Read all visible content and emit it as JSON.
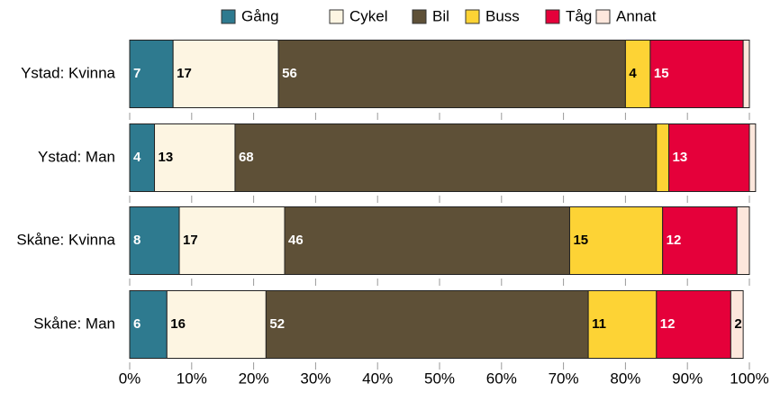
{
  "chart_data": {
    "type": "stacked_bar_horizontal",
    "categories": [
      "Ystad: Kvinna",
      "Ystad: Man",
      "Skåne: Kvinna",
      "Skåne: Man"
    ],
    "series": [
      {
        "name": "Gång",
        "color": "#2e7a8f",
        "label_color": "#ffffff",
        "values": [
          7,
          4,
          8,
          6
        ],
        "value_labels": [
          "7",
          "4",
          "8",
          "6"
        ]
      },
      {
        "name": "Cykel",
        "color": "#fdf5e2",
        "label_color": "#000000",
        "values": [
          17,
          13,
          17,
          16
        ],
        "value_labels": [
          "17",
          "13",
          "17",
          "16"
        ]
      },
      {
        "name": "Bil",
        "color": "#5e5037",
        "label_color": "#ffffff",
        "values": [
          56,
          68,
          46,
          52
        ],
        "value_labels": [
          "56",
          "68",
          "46",
          "52"
        ]
      },
      {
        "name": "Buss",
        "color": "#fdd335",
        "label_color": "#000000",
        "values": [
          4,
          2,
          15,
          11
        ],
        "value_labels": [
          "4",
          null,
          "15",
          "11"
        ]
      },
      {
        "name": "Tåg",
        "color": "#e5003a",
        "label_color": "#ffffff",
        "values": [
          15,
          13,
          12,
          12
        ],
        "value_labels": [
          "15",
          "13",
          "12",
          "12"
        ]
      },
      {
        "name": "Annat",
        "color": "#fde7dc",
        "label_color": "#000000",
        "values": [
          1,
          1,
          2,
          2
        ],
        "value_labels": [
          null,
          null,
          null,
          "2"
        ]
      }
    ],
    "xlim": [
      0,
      100
    ],
    "xticks": [
      {
        "value": 0,
        "label": "0%"
      },
      {
        "value": 10,
        "label": "10%"
      },
      {
        "value": 20,
        "label": "20%"
      },
      {
        "value": 30,
        "label": "30%"
      },
      {
        "value": 40,
        "label": "40%"
      },
      {
        "value": 50,
        "label": "50%"
      },
      {
        "value": 60,
        "label": "60%"
      },
      {
        "value": 70,
        "label": "70%"
      },
      {
        "value": 80,
        "label": "80%"
      },
      {
        "value": 90,
        "label": "90%"
      },
      {
        "value": 100,
        "label": "100%"
      }
    ],
    "legend": "top"
  }
}
